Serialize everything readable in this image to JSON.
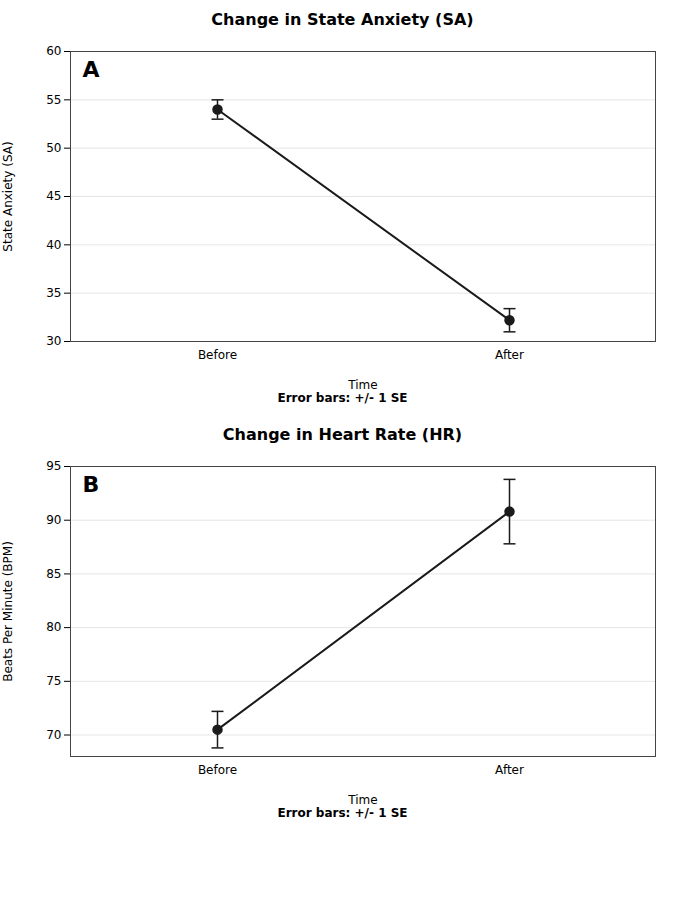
{
  "chart_data": [
    {
      "type": "line",
      "title": "Change in State Anxiety (SA)",
      "xlabel": "Time",
      "ylabel": "State Anxiety (SA)",
      "categories": [
        "Before",
        "After"
      ],
      "values": [
        54.0,
        32.2
      ],
      "errors": [
        1.0,
        1.2
      ],
      "ylim": [
        30,
        60
      ],
      "yticks": [
        30,
        35,
        40,
        45,
        50,
        55,
        60
      ],
      "grid": true,
      "color": "#1a1a1a",
      "marker": "circle",
      "annotations": [
        "A",
        "Error bars: +/- 1 SE"
      ]
    },
    {
      "type": "line",
      "title": "Change in Heart Rate (HR)",
      "xlabel": "Time",
      "ylabel": "Beats Per Minute (BPM)",
      "categories": [
        "Before",
        "After"
      ],
      "values": [
        70.5,
        90.8
      ],
      "errors": [
        1.7,
        3.0
      ],
      "ylim": [
        68,
        95
      ],
      "yticks": [
        70,
        75,
        80,
        85,
        90,
        95
      ],
      "grid": true,
      "color": "#1a1a1a",
      "marker": "circle",
      "annotations": [
        "B",
        "Error bars: +/- 1 SE"
      ]
    }
  ]
}
